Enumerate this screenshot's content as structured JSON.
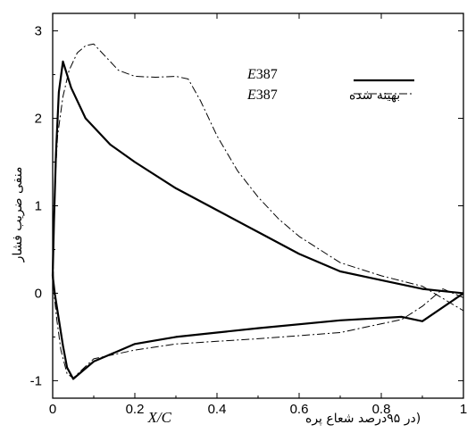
{
  "chart_data": {
    "type": "line",
    "xlabel_var": "X/C",
    "xlabel_text": "(در ۹۵درصد شعاع پره",
    "ylabel": "منفی ضریب فشار",
    "xlim": [
      0,
      1
    ],
    "ylim": [
      -1.2,
      3.2
    ],
    "x_ticks": [
      "0",
      "0.2",
      "0.4",
      "0.6",
      "0.8",
      "1"
    ],
    "y_ticks": [
      "-1",
      "0",
      "1",
      "2",
      "3"
    ],
    "legend": {
      "position": "top-right"
    },
    "series": [
      {
        "name_var": "E",
        "name_rest": "387",
        "style": "solid",
        "x": [
          1.0,
          0.9,
          0.85,
          0.7,
          0.5,
          0.4,
          0.3,
          0.2,
          0.1,
          0.05,
          0.035,
          0.025,
          0.015,
          0.005,
          0.0,
          0.003,
          0.008,
          0.015,
          0.025,
          0.045,
          0.08,
          0.14,
          0.2,
          0.3,
          0.4,
          0.5,
          0.6,
          0.7,
          0.8,
          0.9,
          1.0
        ],
        "y": [
          0.0,
          -0.32,
          -0.27,
          -0.31,
          -0.4,
          -0.45,
          -0.5,
          -0.58,
          -0.78,
          -0.98,
          -0.85,
          -0.6,
          -0.3,
          0.0,
          0.2,
          0.8,
          1.6,
          2.3,
          2.65,
          2.35,
          2.0,
          1.7,
          1.5,
          1.2,
          0.95,
          0.7,
          0.45,
          0.25,
          0.15,
          0.05,
          0.0
        ]
      },
      {
        "name_text": "بهینه شده",
        "name_var": "E",
        "name_rest": "387",
        "style": "dashdot",
        "x": [
          1.0,
          0.95,
          0.9,
          0.85,
          0.7,
          0.5,
          0.4,
          0.3,
          0.2,
          0.1,
          0.07,
          0.05,
          0.035,
          0.02,
          0.01,
          0.003,
          0.0,
          0.005,
          0.012,
          0.025,
          0.04,
          0.06,
          0.08,
          0.1,
          0.12,
          0.16,
          0.2,
          0.25,
          0.3,
          0.33,
          0.36,
          0.4,
          0.45,
          0.5,
          0.55,
          0.6,
          0.65,
          0.7,
          0.8,
          0.9,
          1.0
        ],
        "y": [
          -0.05,
          0.05,
          -0.15,
          -0.3,
          -0.45,
          -0.52,
          -0.55,
          -0.58,
          -0.65,
          -0.75,
          -0.88,
          -0.97,
          -0.92,
          -0.65,
          -0.3,
          0.0,
          0.5,
          1.2,
          1.8,
          2.25,
          2.55,
          2.75,
          2.83,
          2.85,
          2.75,
          2.55,
          2.48,
          2.47,
          2.48,
          2.45,
          2.2,
          1.8,
          1.4,
          1.1,
          0.85,
          0.65,
          0.5,
          0.35,
          0.2,
          0.08,
          -0.2
        ]
      }
    ]
  }
}
